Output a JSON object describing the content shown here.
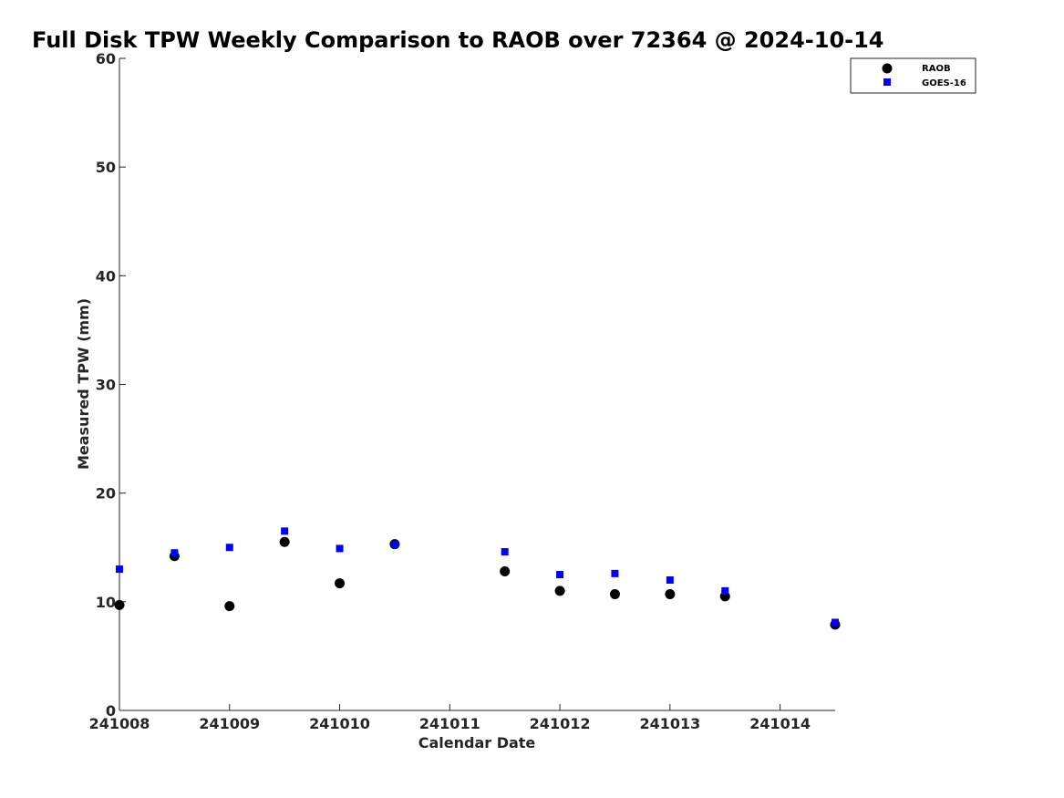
{
  "chart_data": {
    "type": "scatter",
    "title": "Full Disk TPW Weekly Comparison to RAOB over 72364 @ 2024-10-14",
    "xlabel": "Calendar Date",
    "ylabel": "Measured TPW (mm)",
    "xlim": [
      0,
      6.5
    ],
    "ylim": [
      0,
      60
    ],
    "x_tick_values": [
      0,
      1,
      2,
      3,
      4,
      5,
      6
    ],
    "x_tick_labels": [
      "241008",
      "241009",
      "241010",
      "241011",
      "241012",
      "241013",
      "241014"
    ],
    "y_tick_values": [
      0,
      10,
      20,
      30,
      40,
      50,
      60
    ],
    "y_tick_labels": [
      "0",
      "10",
      "20",
      "30",
      "40",
      "50",
      "60"
    ],
    "grid": false,
    "legend_position": "top-right",
    "series": [
      {
        "name": "RAOB",
        "marker": "circle",
        "color": "#000000",
        "x": [
          0,
          0.5,
          1,
          1.5,
          2,
          2.5,
          3.5,
          4,
          4.5,
          5,
          5.5,
          6.5
        ],
        "y": [
          9.7,
          14.2,
          9.6,
          15.5,
          11.7,
          15.3,
          12.8,
          11.0,
          10.7,
          10.7,
          10.5,
          7.9
        ]
      },
      {
        "name": "GOES-16",
        "marker": "square",
        "color": "#0000ff",
        "x": [
          0,
          0.5,
          1,
          1.5,
          2,
          2.5,
          3.5,
          4,
          4.5,
          5,
          5.5,
          6.5
        ],
        "y": [
          13.0,
          14.5,
          15.0,
          16.5,
          14.9,
          15.3,
          14.6,
          12.5,
          12.6,
          12.0,
          11.0,
          8.1
        ]
      }
    ]
  }
}
